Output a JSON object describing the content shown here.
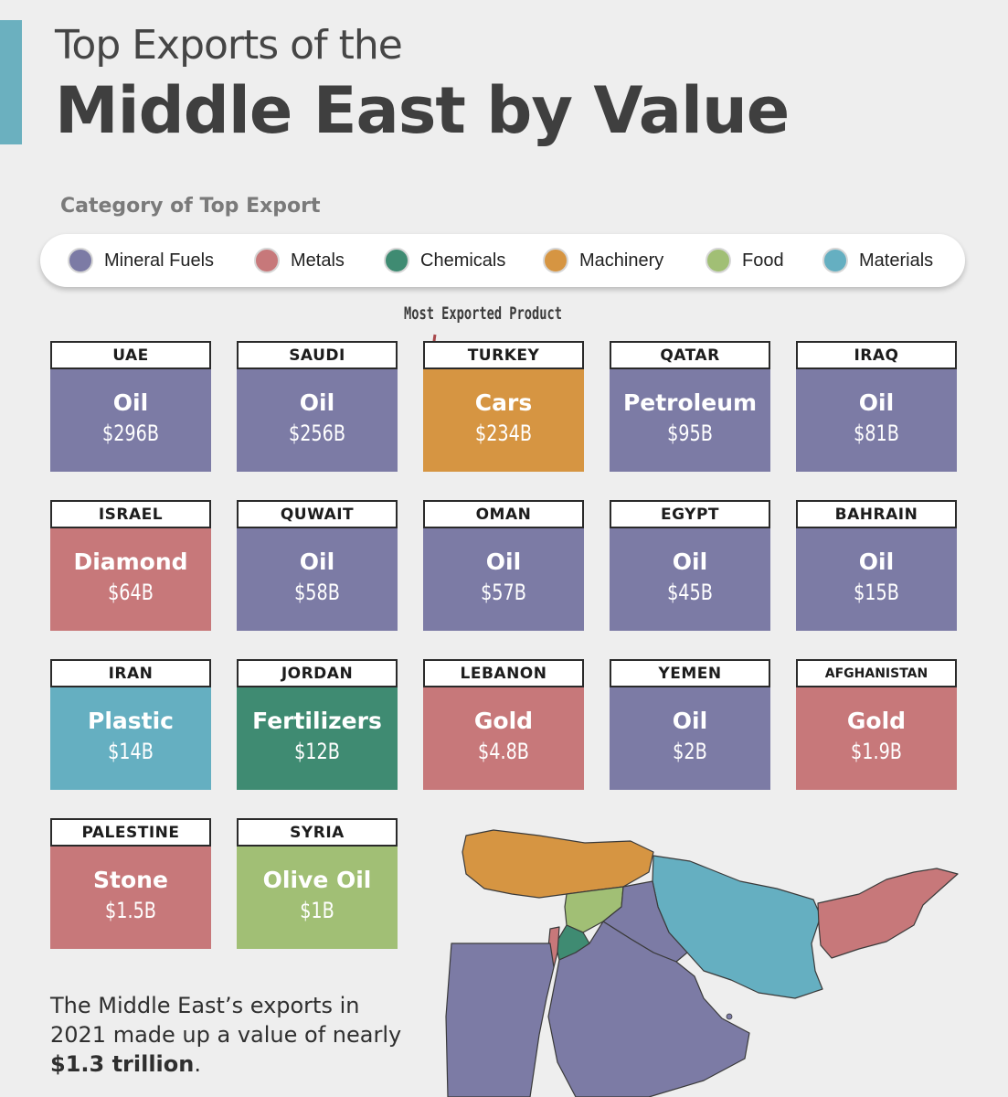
{
  "title": {
    "line1": "Top Exports of the",
    "line2": "Middle East by Value"
  },
  "legend": {
    "title": "Category of Top Export",
    "items": [
      {
        "label": "Mineral Fuels",
        "color": "#7c7ba5"
      },
      {
        "label": "Metals",
        "color": "#c7787a"
      },
      {
        "label": "Chemicals",
        "color": "#3f8b72"
      },
      {
        "label": "Machinery",
        "color": "#d69542"
      },
      {
        "label": "Food",
        "color": "#a1bf75"
      },
      {
        "label": "Materials",
        "color": "#65afc1"
      }
    ]
  },
  "annotation": "Most Exported Product",
  "cards": [
    {
      "country": "UAE",
      "product": "Oil",
      "value": "$296B",
      "category": "Mineral Fuels"
    },
    {
      "country": "SAUDI",
      "product": "Oil",
      "value": "$256B",
      "category": "Mineral Fuels"
    },
    {
      "country": "TURKEY",
      "product": "Cars",
      "value": "$234B",
      "category": "Machinery"
    },
    {
      "country": "QATAR",
      "product": "Petroleum",
      "value": "$95B",
      "category": "Mineral Fuels"
    },
    {
      "country": "IRAQ",
      "product": "Oil",
      "value": "$81B",
      "category": "Mineral Fuels"
    },
    {
      "country": "ISRAEL",
      "product": "Diamond",
      "value": "$64B",
      "category": "Metals"
    },
    {
      "country": "QUWAIT",
      "product": "Oil",
      "value": "$58B",
      "category": "Mineral Fuels"
    },
    {
      "country": "OMAN",
      "product": "Oil",
      "value": "$57B",
      "category": "Mineral Fuels"
    },
    {
      "country": "EGYPT",
      "product": "Oil",
      "value": "$45B",
      "category": "Mineral Fuels"
    },
    {
      "country": "BAHRAIN",
      "product": "Oil",
      "value": "$15B",
      "category": "Mineral Fuels"
    },
    {
      "country": "IRAN",
      "product": "Plastic",
      "value": "$14B",
      "category": "Materials"
    },
    {
      "country": "JORDAN",
      "product": "Fertilizers",
      "value": "$12B",
      "category": "Chemicals"
    },
    {
      "country": "LEBANON",
      "product": "Gold",
      "value": "$4.8B",
      "category": "Metals"
    },
    {
      "country": "YEMEN",
      "product": "Oil",
      "value": "$2B",
      "category": "Mineral Fuels"
    },
    {
      "country": "AFGHANISTAN",
      "product": "Gold",
      "value": "$1.9B",
      "category": "Metals"
    },
    {
      "country": "PALESTINE",
      "product": "Stone",
      "value": "$1.5B",
      "category": "Metals"
    },
    {
      "country": "SYRIA",
      "product": "Olive Oil",
      "value": "$1B",
      "category": "Food"
    }
  ],
  "summary": {
    "text": "The Middle East’s exports in 2021 made up a value of nearly ",
    "highlight": "$1.3 trillion",
    "end": "."
  }
}
